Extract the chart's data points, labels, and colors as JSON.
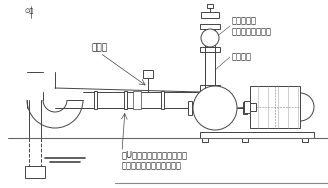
{
  "bg_color": "#ffffff",
  "line_color": "#444444",
  "dark_color": "#222222",
  "label_haiki": "排気弁",
  "label_check": "特許ヨコタ\n無水豊チェッキ弁",
  "label_riser": "立上り管",
  "label_note": "逆U字管に向かって水平又は\n上り勾配としてください。",
  "label_p": "∅水"
}
